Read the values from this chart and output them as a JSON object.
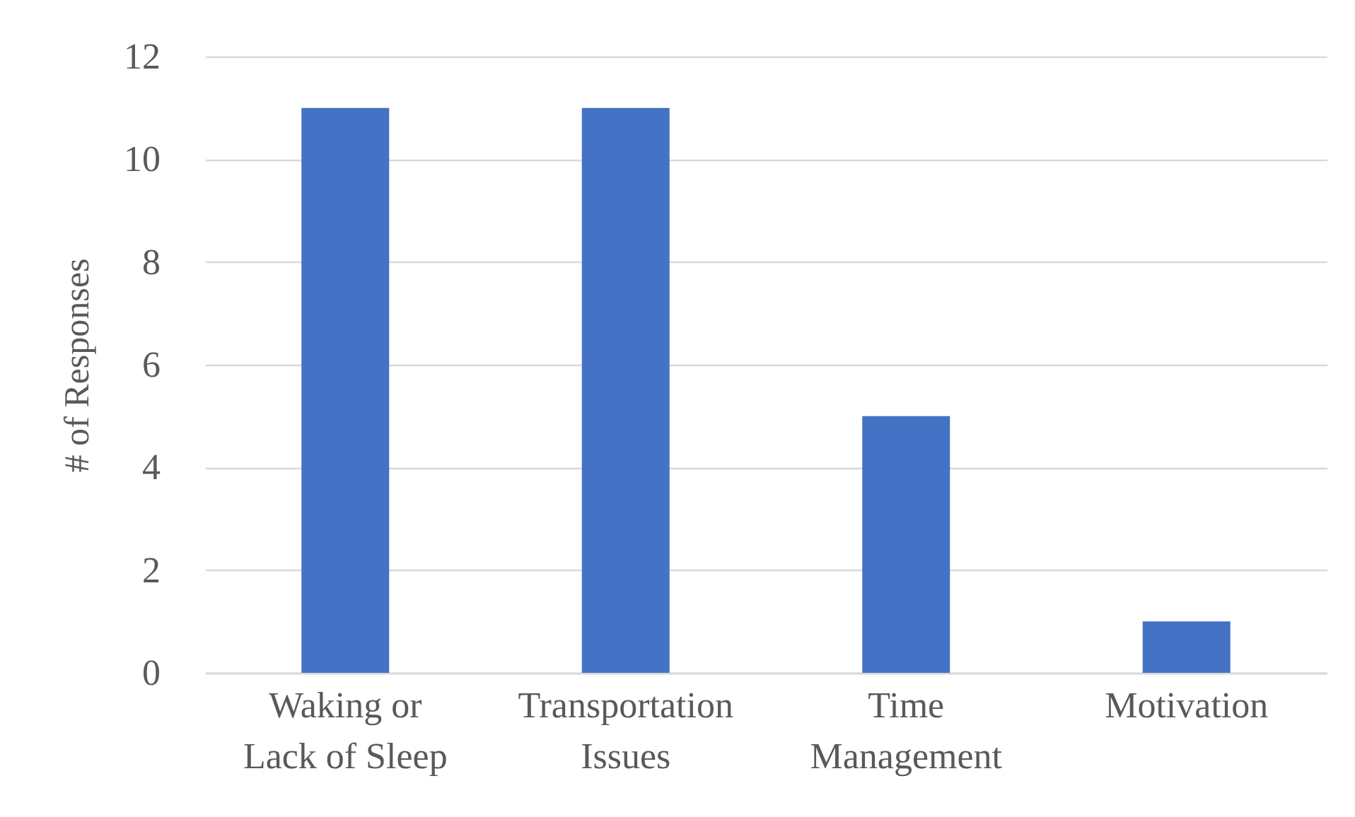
{
  "chart_data": {
    "type": "bar",
    "ylabel": "# of Responses",
    "categories": [
      "Waking or Lack of Sleep",
      "Transportation Issues",
      "Time Management",
      "Motivation"
    ],
    "values": [
      11,
      11,
      5,
      1
    ],
    "color": "#4472c4",
    "ylim": [
      0,
      12
    ],
    "yticks": [
      0,
      2,
      4,
      6,
      8,
      10,
      12
    ],
    "grid": "y"
  }
}
